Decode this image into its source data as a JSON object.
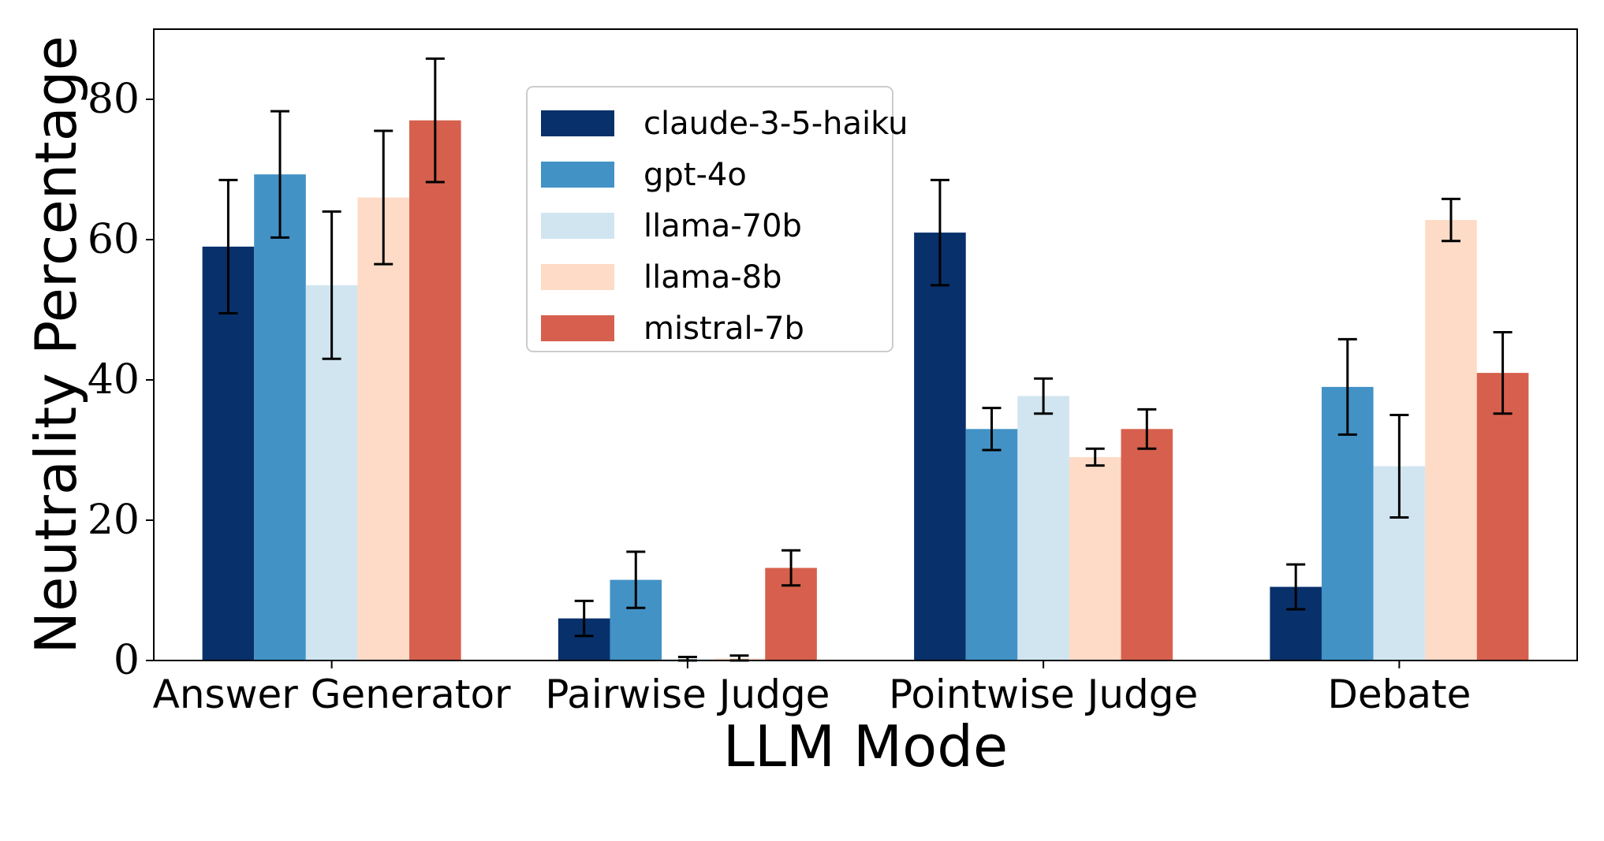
{
  "chart_data": {
    "type": "bar",
    "xlabel": "LLM Mode",
    "ylabel": "Neutrality Percentage",
    "ylim": [
      0,
      90
    ],
    "yticks": [
      0,
      20,
      40,
      60,
      80
    ],
    "grid": false,
    "legend_position": "top-center",
    "categories": [
      "Answer Generator",
      "Pairwise Judge",
      "Pointwise Judge",
      "Debate"
    ],
    "series": [
      {
        "name": "claude-3-5-haiku",
        "color": "#08306b",
        "values": [
          59.0,
          6.0,
          61.0,
          10.5
        ],
        "errors": [
          9.5,
          2.5,
          7.5,
          3.2
        ]
      },
      {
        "name": "gpt-4o",
        "color": "#4292c6",
        "values": [
          69.3,
          11.5,
          33.0,
          39.0
        ],
        "errors": [
          9.0,
          4.0,
          3.0,
          6.8
        ]
      },
      {
        "name": "llama-70b",
        "color": "#d1e5f0",
        "values": [
          53.5,
          0.2,
          37.7,
          27.7
        ],
        "errors": [
          10.5,
          0.3,
          2.5,
          7.3
        ]
      },
      {
        "name": "llama-8b",
        "color": "#fddbc7",
        "values": [
          66.0,
          0.3,
          29.0,
          62.8
        ],
        "errors": [
          9.5,
          0.4,
          1.2,
          3.0
        ]
      },
      {
        "name": "mistral-7b",
        "color": "#d6604d",
        "values": [
          77.0,
          13.2,
          33.0,
          41.0
        ],
        "errors": [
          8.8,
          2.5,
          2.8,
          5.8
        ]
      }
    ]
  }
}
